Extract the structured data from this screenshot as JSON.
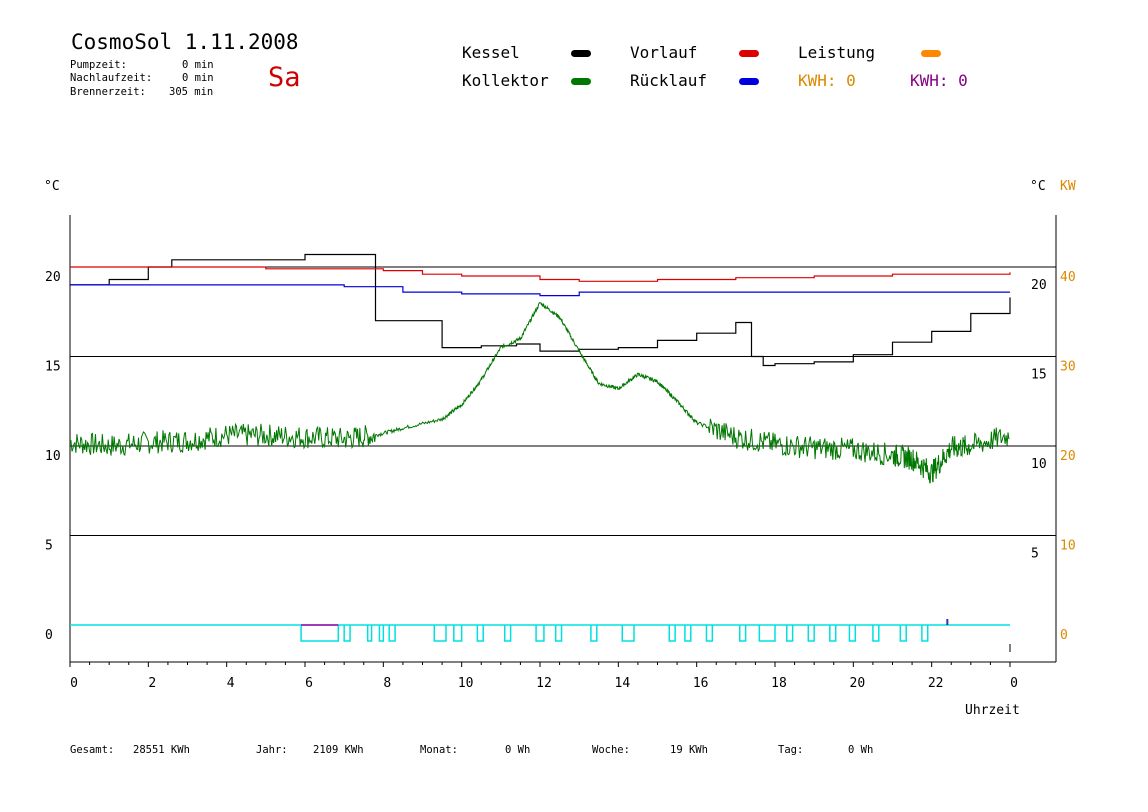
{
  "header": {
    "title": "CosmoSol 1.11.2008",
    "day": "Sa",
    "stats": [
      {
        "label": "Pumpzeit:",
        "value": "0 min"
      },
      {
        "label": "Nachlaufzeit:",
        "value": "0 min"
      },
      {
        "label": "Brennerzeit:",
        "value": "305 min"
      }
    ]
  },
  "legend": [
    {
      "label": "Kessel",
      "color": "#000000"
    },
    {
      "label": "Kollektor",
      "color": "#007700"
    },
    {
      "label": "Vorlauf",
      "color": "#dd0000"
    },
    {
      "label": "Rücklauf",
      "color": "#0000dd"
    },
    {
      "label": "Leistung",
      "color": "#ff8800"
    }
  ],
  "kwh": [
    {
      "text": "KWH: 0",
      "color": "#dd8800"
    },
    {
      "text": "KWH: 0",
      "color": "#880088"
    }
  ],
  "footer": [
    {
      "label": "Gesamt:",
      "value": "28551 KWh"
    },
    {
      "label": "Jahr:",
      "value": "2109 KWh"
    },
    {
      "label": "Monat:",
      "value": "0 Wh"
    },
    {
      "label": "Woche:",
      "value": "19 KWh"
    },
    {
      "label": "Tag:",
      "value": "0 Wh"
    }
  ],
  "chart_data": {
    "type": "line",
    "xlabel": "Uhrzeit",
    "ylabel_left": "°C",
    "ylabel_right": "°C",
    "ylabel_right2": "KW",
    "xlim": [
      0,
      24
    ],
    "x_ticks": [
      "0",
      "2",
      "4",
      "6",
      "8",
      "10",
      "12",
      "14",
      "16",
      "18",
      "20",
      "22",
      "0"
    ],
    "y_left_ticks": [
      "0",
      "5",
      "10",
      "15",
      "20"
    ],
    "y_right_ticks": [
      "5",
      "10",
      "15",
      "20"
    ],
    "y_kw_ticks": [
      "0",
      "10",
      "20",
      "30",
      "40"
    ],
    "ylim": [
      -2,
      23
    ],
    "grid_y": [
      5,
      10,
      15,
      20
    ],
    "series": [
      {
        "name": "Kessel",
        "color": "#000000",
        "x": [
          0,
          1,
          2,
          2.6,
          6,
          7.6,
          7.8,
          8.9,
          9.5,
          10.5,
          11.4,
          12,
          13,
          14,
          15,
          16,
          17,
          17.4,
          17.7,
          18,
          19,
          20,
          21,
          22,
          23,
          24
        ],
        "y": [
          19,
          19.3,
          20,
          20.4,
          20.7,
          20.7,
          17,
          17,
          15.5,
          15.6,
          15.7,
          15.3,
          15.4,
          15.5,
          15.9,
          16.3,
          16.9,
          15,
          14.5,
          14.6,
          14.7,
          15.1,
          15.8,
          16.4,
          17.4,
          18.3
        ]
      },
      {
        "name": "Vorlauf",
        "color": "#dd0000",
        "x": [
          0,
          2,
          5,
          8,
          9,
          10,
          12,
          13,
          15,
          17,
          19,
          21,
          24
        ],
        "y": [
          20,
          20,
          19.9,
          19.8,
          19.6,
          19.5,
          19.3,
          19.2,
          19.3,
          19.4,
          19.5,
          19.6,
          19.7
        ]
      },
      {
        "name": "Rücklauf",
        "color": "#0000dd",
        "x": [
          0,
          2,
          5,
          7,
          8.5,
          10,
          12,
          13,
          15,
          17,
          19,
          21,
          24
        ],
        "y": [
          19,
          19,
          19,
          18.9,
          18.6,
          18.5,
          18.4,
          18.6,
          18.6,
          18.6,
          18.6,
          18.6,
          18.6
        ]
      },
      {
        "name": "Kollektor",
        "color": "#007700",
        "x": [
          0,
          1,
          2,
          3,
          4,
          5,
          6,
          7,
          7.8,
          8.5,
          9.5,
          10,
          10.5,
          11,
          11.5,
          12,
          12.5,
          13,
          13.5,
          14,
          14.5,
          15,
          15.5,
          16,
          17,
          18,
          19,
          20,
          21,
          21.5,
          22,
          22.5,
          23,
          24
        ],
        "y": [
          10.2,
          10,
          10.2,
          10.3,
          10.6,
          10.6,
          10.5,
          10.4,
          10.6,
          11,
          11.5,
          12.3,
          13.7,
          15.5,
          16,
          18,
          17.2,
          15.3,
          13.5,
          13.2,
          14,
          13.6,
          12.5,
          11.3,
          10.5,
          10.1,
          9.9,
          9.8,
          9.5,
          9.3,
          8.5,
          9.9,
          10,
          10.6
        ]
      }
    ]
  }
}
